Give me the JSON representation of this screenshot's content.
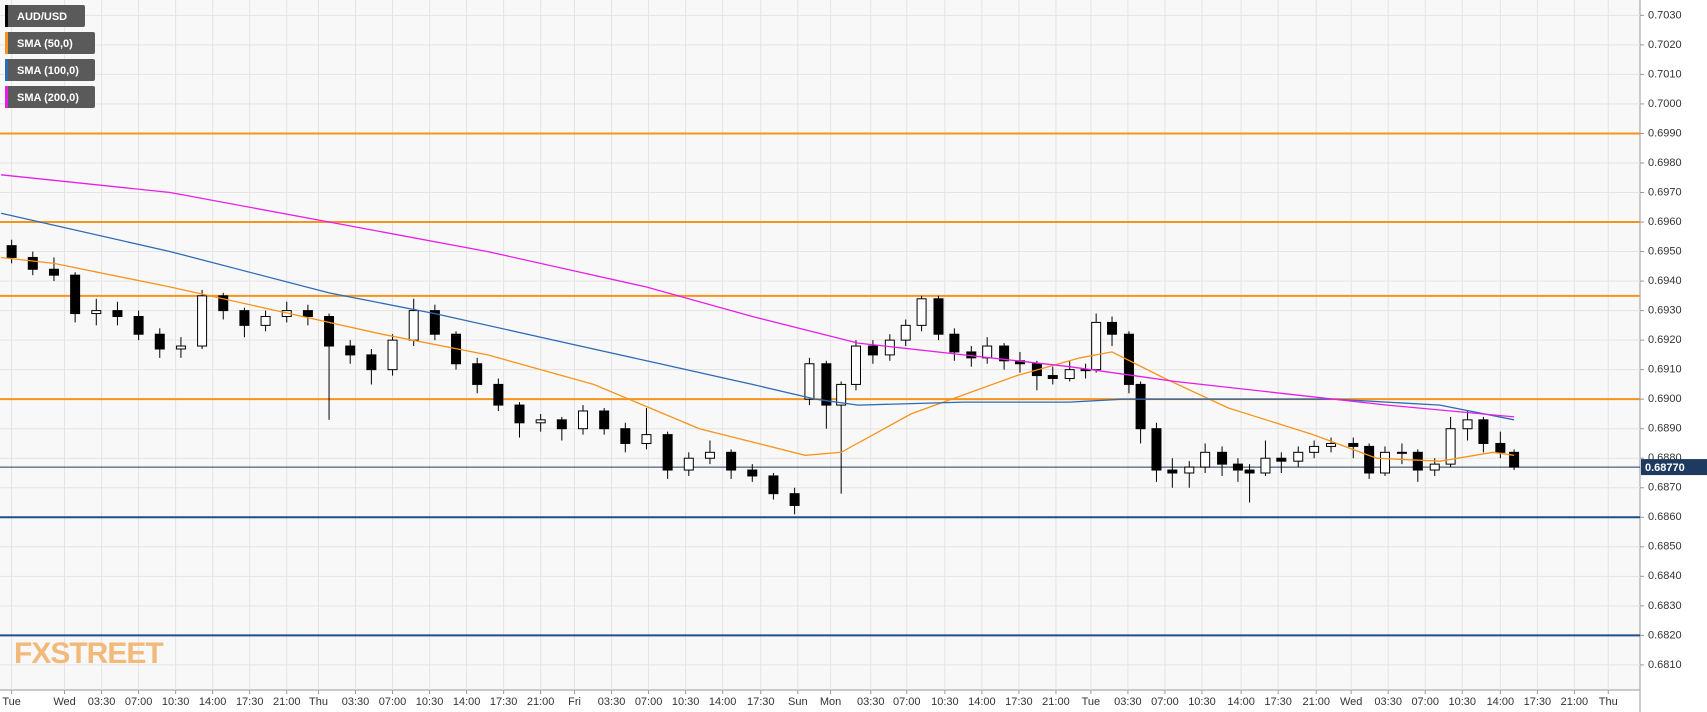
{
  "chart_data": {
    "type": "candlestick",
    "candles": {
      "name": "AUD/USD",
      "x": [
        -5,
        -3,
        -1,
        1,
        3,
        5,
        7,
        9,
        11,
        13,
        15,
        17,
        19,
        21,
        23,
        25,
        27,
        29,
        31,
        33,
        35,
        37,
        39,
        41,
        43,
        45,
        47,
        49,
        51,
        53,
        55,
        57,
        59,
        61,
        63,
        65,
        67,
        69,
        70.4,
        72,
        73.4,
        74.8,
        76.4,
        78,
        79.5,
        81,
        82.6,
        84.1,
        85.7,
        87.2,
        88.8,
        90.3,
        91.9,
        93.4,
        95,
        96.5,
        97.5,
        99,
        100.6,
        101.7,
        103.2,
        104.7,
        106.3,
        107.8,
        109.4,
        110.9,
        112,
        113.5,
        115,
        116.6,
        118.1,
        119.7,
        121.8,
        123.3,
        124.8,
        126.4,
        127.9,
        129.5,
        131,
        132.6,
        134.1,
        135.7,
        137
      ],
      "open": [
        0.6952,
        0.6948,
        0.6944,
        0.6942,
        0.6929,
        0.693,
        0.6928,
        0.6922,
        0.6917,
        0.6918,
        0.6935,
        0.693,
        0.6925,
        0.6928,
        0.693,
        0.6928,
        0.6918,
        0.6915,
        0.691,
        0.692,
        0.693,
        0.6922,
        0.6912,
        0.6905,
        0.6898,
        0.6892,
        0.6893,
        0.689,
        0.6896,
        0.689,
        0.6885,
        0.6888,
        0.6876,
        0.688,
        0.6882,
        0.6876,
        0.6874,
        0.6868,
        0.69,
        0.6912,
        0.6898,
        0.6905,
        0.6918,
        0.6915,
        0.692,
        0.6925,
        0.6934,
        0.6922,
        0.6916,
        0.6914,
        0.6918,
        0.6913,
        0.6912,
        0.6908,
        0.6907,
        0.691,
        0.691,
        0.6926,
        0.6922,
        0.6905,
        0.689,
        0.6876,
        0.6875,
        0.6877,
        0.6882,
        0.6878,
        0.6876,
        0.6875,
        0.688,
        0.6879,
        0.6882,
        0.6884,
        0.6885,
        0.6884,
        0.6875,
        0.6882,
        0.6882,
        0.6876,
        0.6878,
        0.689,
        0.6893,
        0.6885,
        0.6882
      ],
      "high": [
        0.6954,
        0.695,
        0.6948,
        0.6943,
        0.6934,
        0.6933,
        0.693,
        0.6924,
        0.6921,
        0.6937,
        0.6936,
        0.6931,
        0.693,
        0.6933,
        0.6932,
        0.6929,
        0.692,
        0.6917,
        0.6922,
        0.6934,
        0.6932,
        0.6923,
        0.6914,
        0.6907,
        0.6899,
        0.6895,
        0.6894,
        0.6898,
        0.6897,
        0.6892,
        0.6897,
        0.6889,
        0.6882,
        0.6886,
        0.6883,
        0.6878,
        0.6875,
        0.687,
        0.6914,
        0.6913,
        0.6906,
        0.692,
        0.692,
        0.6922,
        0.6927,
        0.6935,
        0.6935,
        0.6924,
        0.6918,
        0.6921,
        0.6919,
        0.6916,
        0.6913,
        0.6911,
        0.6913,
        0.6912,
        0.6929,
        0.6928,
        0.6923,
        0.6906,
        0.6892,
        0.688,
        0.6879,
        0.6885,
        0.6884,
        0.688,
        0.6878,
        0.6886,
        0.6882,
        0.6884,
        0.6886,
        0.6887,
        0.6887,
        0.6885,
        0.6884,
        0.6885,
        0.6883,
        0.688,
        0.6894,
        0.6896,
        0.6894,
        0.6889,
        0.6883
      ],
      "low": [
        0.6946,
        0.6942,
        0.694,
        0.6926,
        0.6925,
        0.6925,
        0.692,
        0.6914,
        0.6914,
        0.6917,
        0.6927,
        0.6921,
        0.6923,
        0.6926,
        0.6925,
        0.6893,
        0.6912,
        0.6905,
        0.6908,
        0.6918,
        0.692,
        0.691,
        0.6902,
        0.6896,
        0.6887,
        0.6889,
        0.6886,
        0.6888,
        0.6888,
        0.6882,
        0.6883,
        0.6873,
        0.6874,
        0.6878,
        0.6873,
        0.6872,
        0.6866,
        0.6861,
        0.6898,
        0.689,
        0.6868,
        0.6903,
        0.6912,
        0.6913,
        0.6918,
        0.6923,
        0.692,
        0.6913,
        0.6911,
        0.6912,
        0.691,
        0.6909,
        0.6903,
        0.6905,
        0.6906,
        0.6907,
        0.6909,
        0.6918,
        0.6902,
        0.6885,
        0.6872,
        0.687,
        0.687,
        0.6875,
        0.6874,
        0.6872,
        0.6865,
        0.6874,
        0.6875,
        0.6877,
        0.688,
        0.6882,
        0.688,
        0.6873,
        0.6874,
        0.6878,
        0.6872,
        0.6874,
        0.6877,
        0.6886,
        0.6882,
        0.688,
        0.6876
      ],
      "close": [
        0.6948,
        0.6944,
        0.6942,
        0.6929,
        0.693,
        0.6928,
        0.6922,
        0.6917,
        0.6918,
        0.6935,
        0.693,
        0.6925,
        0.6928,
        0.693,
        0.6928,
        0.6918,
        0.6915,
        0.691,
        0.692,
        0.693,
        0.6922,
        0.6912,
        0.6905,
        0.6898,
        0.6892,
        0.6893,
        0.689,
        0.6896,
        0.689,
        0.6885,
        0.6888,
        0.6876,
        0.688,
        0.6882,
        0.6876,
        0.6874,
        0.6868,
        0.6864,
        0.6912,
        0.6898,
        0.6905,
        0.6918,
        0.6915,
        0.692,
        0.6925,
        0.6934,
        0.6922,
        0.6916,
        0.6914,
        0.6918,
        0.6913,
        0.6912,
        0.6908,
        0.6907,
        0.691,
        0.691,
        0.6926,
        0.6922,
        0.6905,
        0.689,
        0.6876,
        0.6875,
        0.6877,
        0.6882,
        0.6878,
        0.6876,
        0.6875,
        0.688,
        0.6879,
        0.6882,
        0.6884,
        0.6885,
        0.6884,
        0.6875,
        0.6882,
        0.6882,
        0.6876,
        0.6878,
        0.689,
        0.6893,
        0.6885,
        0.6882,
        0.6877
      ]
    },
    "series": [
      {
        "name": "SMA (50,0)",
        "color": "#f7941d",
        "x": [
          -6,
          -1,
          10,
          20,
          30,
          40,
          50,
          60,
          70,
          73.4,
          80,
          90,
          96,
          99,
          104,
          110,
          118,
          124,
          130,
          135,
          137
        ],
        "values": [
          0.6948,
          0.6946,
          0.6938,
          0.693,
          0.6922,
          0.6915,
          0.6905,
          0.689,
          0.6881,
          0.6882,
          0.6895,
          0.6908,
          0.6914,
          0.6916,
          0.6907,
          0.6897,
          0.6888,
          0.688,
          0.6879,
          0.6882,
          0.6881
        ]
      },
      {
        "name": "SMA (100,0)",
        "color": "#2e6bb5",
        "x": [
          -6,
          10,
          25,
          35,
          45,
          55,
          65,
          71,
          75,
          85,
          95,
          100,
          110,
          120,
          130,
          137
        ],
        "values": [
          0.6963,
          0.695,
          0.6936,
          0.6929,
          0.6921,
          0.6913,
          0.6905,
          0.69,
          0.6898,
          0.6899,
          0.6899,
          0.69,
          0.69,
          0.69,
          0.6898,
          0.6893
        ]
      },
      {
        "name": "SMA (200,0)",
        "color": "#e81ee8",
        "x": [
          -6,
          10,
          25,
          40,
          55,
          65,
          75,
          85,
          95,
          105,
          115,
          125,
          137
        ],
        "values": [
          0.6976,
          0.697,
          0.696,
          0.695,
          0.6938,
          0.6928,
          0.6919,
          0.6915,
          0.6911,
          0.6906,
          0.6902,
          0.6898,
          0.6894
        ]
      }
    ],
    "candle_colors": {
      "up": "#ffffff",
      "down": "#000000",
      "outline": "#000000"
    },
    "levels": [
      {
        "value": 0.699,
        "color": "#f7941d"
      },
      {
        "value": 0.696,
        "color": "#f7941d"
      },
      {
        "value": 0.6935,
        "color": "#f7941d"
      },
      {
        "value": 0.69,
        "color": "#f7941d"
      },
      {
        "value": 0.686,
        "color": "#1f4e8c"
      },
      {
        "value": 0.682,
        "color": "#1f4e8c"
      }
    ],
    "last_price": {
      "value": 0.6877,
      "label": "0.68770",
      "color": "#1f3a5f"
    },
    "watermark": "FXSTREET",
    "grid": true,
    "xlim": [
      -6.1,
      148.9
    ],
    "ylim": [
      0.68015,
      0.70352
    ],
    "xticks": [
      {
        "value": -5,
        "label": "Tue"
      },
      {
        "value": 0,
        "label": "Wed"
      },
      {
        "value": 3.5,
        "label": "03:30"
      },
      {
        "value": 7,
        "label": "07:00"
      },
      {
        "value": 10.5,
        "label": "10:30"
      },
      {
        "value": 14,
        "label": "14:00"
      },
      {
        "value": 17.5,
        "label": "17:30"
      },
      {
        "value": 21,
        "label": "21:00"
      },
      {
        "value": 24,
        "label": "Thu"
      },
      {
        "value": 27.5,
        "label": "03:30"
      },
      {
        "value": 31,
        "label": "07:00"
      },
      {
        "value": 34.5,
        "label": "10:30"
      },
      {
        "value": 38,
        "label": "14:00"
      },
      {
        "value": 41.5,
        "label": "17:30"
      },
      {
        "value": 45,
        "label": "21:00"
      },
      {
        "value": 48.2,
        "label": "Fri"
      },
      {
        "value": 51.7,
        "label": "03:30"
      },
      {
        "value": 55.2,
        "label": "07:00"
      },
      {
        "value": 58.7,
        "label": "10:30"
      },
      {
        "value": 62.2,
        "label": "14:00"
      },
      {
        "value": 65.8,
        "label": "17:30"
      },
      {
        "value": 69.3,
        "label": "Sun"
      },
      {
        "value": 72.4,
        "label": "Mon"
      },
      {
        "value": 76.2,
        "label": "03:30"
      },
      {
        "value": 79.6,
        "label": "07:00"
      },
      {
        "value": 83.2,
        "label": "10:30"
      },
      {
        "value": 86.7,
        "label": "14:00"
      },
      {
        "value": 90.2,
        "label": "17:30"
      },
      {
        "value": 93.7,
        "label": "21:00"
      },
      {
        "value": 97,
        "label": "Tue"
      },
      {
        "value": 100.5,
        "label": "03:30"
      },
      {
        "value": 104,
        "label": "07:00"
      },
      {
        "value": 107.5,
        "label": "10:30"
      },
      {
        "value": 111.2,
        "label": "14:00"
      },
      {
        "value": 114.7,
        "label": "17:30"
      },
      {
        "value": 118.3,
        "label": "21:00"
      },
      {
        "value": 121.6,
        "label": "Wed"
      },
      {
        "value": 125.1,
        "label": "03:30"
      },
      {
        "value": 128.6,
        "label": "07:00"
      },
      {
        "value": 132.1,
        "label": "10:30"
      },
      {
        "value": 135.7,
        "label": "14:00"
      },
      {
        "value": 139.2,
        "label": "17:30"
      },
      {
        "value": 142.7,
        "label": "21:00"
      },
      {
        "value": 145.9,
        "label": "Thu"
      }
    ],
    "yticks": [
      {
        "value": 0.681,
        "label": "0.6810"
      },
      {
        "value": 0.682,
        "label": "0.6820"
      },
      {
        "value": 0.683,
        "label": "0.6830"
      },
      {
        "value": 0.684,
        "label": "0.6840"
      },
      {
        "value": 0.685,
        "label": "0.6850"
      },
      {
        "value": 0.686,
        "label": "0.6860"
      },
      {
        "value": 0.687,
        "label": "0.6870"
      },
      {
        "value": 0.688,
        "label": "0.6880"
      },
      {
        "value": 0.689,
        "label": "0.6890"
      },
      {
        "value": 0.69,
        "label": "0.6900"
      },
      {
        "value": 0.691,
        "label": "0.6910"
      },
      {
        "value": 0.692,
        "label": "0.6920"
      },
      {
        "value": 0.693,
        "label": "0.6930"
      },
      {
        "value": 0.694,
        "label": "0.6940"
      },
      {
        "value": 0.695,
        "label": "0.6950"
      },
      {
        "value": 0.696,
        "label": "0.6960"
      },
      {
        "value": 0.697,
        "label": "0.6970"
      },
      {
        "value": 0.698,
        "label": "0.6980"
      },
      {
        "value": 0.699,
        "label": "0.6990"
      },
      {
        "value": 0.7,
        "label": "0.7000"
      },
      {
        "value": 0.701,
        "label": "0.7010"
      },
      {
        "value": 0.702,
        "label": "0.7020"
      },
      {
        "value": 0.703,
        "label": "0.7030"
      }
    ]
  }
}
